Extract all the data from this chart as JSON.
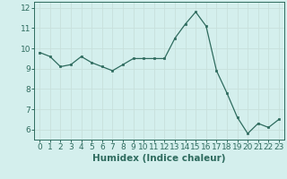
{
  "x": [
    0,
    1,
    2,
    3,
    4,
    5,
    6,
    7,
    8,
    9,
    10,
    11,
    12,
    13,
    14,
    15,
    16,
    17,
    18,
    19,
    20,
    21,
    22,
    23
  ],
  "y": [
    9.8,
    9.6,
    9.1,
    9.2,
    9.6,
    9.3,
    9.1,
    8.9,
    9.2,
    9.5,
    9.5,
    9.5,
    9.5,
    10.5,
    11.2,
    11.8,
    11.1,
    8.9,
    7.8,
    6.6,
    5.8,
    6.3,
    6.1,
    6.5
  ],
  "xlabel": "Humidex (Indice chaleur)",
  "ylim": [
    5.5,
    12.3
  ],
  "yticks": [
    6,
    7,
    8,
    9,
    10,
    11,
    12
  ],
  "xticks": [
    0,
    1,
    2,
    3,
    4,
    5,
    6,
    7,
    8,
    9,
    10,
    11,
    12,
    13,
    14,
    15,
    16,
    17,
    18,
    19,
    20,
    21,
    22,
    23
  ],
  "line_color": "#2e6b5e",
  "bg_color": "#d4efed",
  "grid_color": "#c8e0dc",
  "tick_label_fontsize": 6.5,
  "xlabel_fontsize": 7.5
}
